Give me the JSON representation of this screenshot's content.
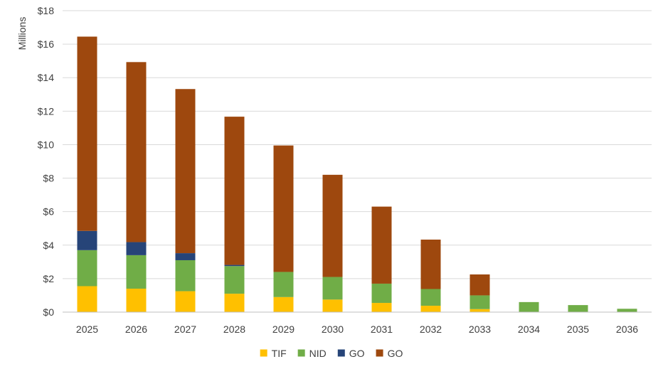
{
  "chart_data": {
    "type": "bar",
    "stacked": true,
    "categories": [
      "2025",
      "2026",
      "2027",
      "2028",
      "2029",
      "2030",
      "2031",
      "2032",
      "2033",
      "2034",
      "2035",
      "2036"
    ],
    "series": [
      {
        "name": "TIF",
        "color": "#FFC000",
        "values": [
          1.55,
          1.4,
          1.25,
          1.1,
          0.9,
          0.75,
          0.55,
          0.38,
          0.18,
          0,
          0,
          0
        ]
      },
      {
        "name": "NID",
        "color": "#70AD47",
        "values": [
          2.15,
          2.0,
          1.85,
          1.65,
          1.5,
          1.35,
          1.15,
          1.0,
          0.82,
          0.6,
          0.42,
          0.2
        ]
      },
      {
        "name": "GO",
        "color": "#264478",
        "values": [
          1.15,
          0.78,
          0.42,
          0.07,
          0,
          0,
          0,
          0,
          0,
          0,
          0,
          0
        ]
      },
      {
        "name": "GO",
        "color": "#9E480E",
        "values": [
          11.6,
          10.75,
          9.8,
          8.85,
          7.55,
          6.1,
          4.6,
          2.95,
          1.25,
          0,
          0,
          0
        ]
      }
    ],
    "ylabel": "Millions",
    "ylim": [
      0,
      18
    ],
    "y_ticks": [
      {
        "value": 0,
        "label": "$0"
      },
      {
        "value": 2,
        "label": "$2"
      },
      {
        "value": 4,
        "label": "$4"
      },
      {
        "value": 6,
        "label": "$6"
      },
      {
        "value": 8,
        "label": "$8"
      },
      {
        "value": 10,
        "label": "$10"
      },
      {
        "value": 12,
        "label": "$12"
      },
      {
        "value": 14,
        "label": "$14"
      },
      {
        "value": 16,
        "label": "$16"
      },
      {
        "value": 18,
        "label": "$18"
      }
    ],
    "grid": true,
    "legend_position": "bottom",
    "gridline_color": "#D9D9D9",
    "axis_line_color": "#BFBFBF"
  }
}
